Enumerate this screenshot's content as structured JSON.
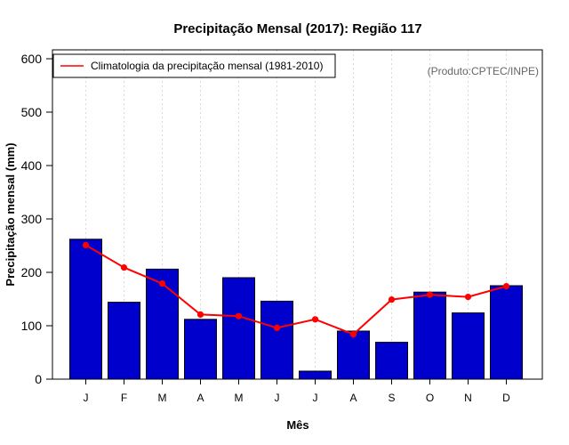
{
  "chart_data": {
    "type": "bar",
    "title": "Precipitação Mensal (2017): Região 117",
    "xlabel": "Mês",
    "ylabel": "Precipitação mensal (mm)",
    "ylim": [
      0,
      600
    ],
    "yticks": [
      "0",
      "100",
      "200",
      "300",
      "400",
      "500",
      "600"
    ],
    "categories": [
      "J",
      "F",
      "M",
      "A",
      "M",
      "J",
      "J",
      "A",
      "S",
      "O",
      "N",
      "D"
    ],
    "grid": "vertical dotted",
    "legend_position": "top-left",
    "series": [
      {
        "name": "Precipitação mensal (2017)",
        "kind": "bar",
        "color": "#0000cd",
        "values": [
          262,
          144,
          206,
          112,
          190,
          146,
          15,
          90,
          69,
          163,
          124,
          175
        ]
      },
      {
        "name": "Climatologia da precipitação mensal (1981-2010)",
        "kind": "line",
        "color": "#ff0000",
        "values": [
          251,
          209,
          179,
          121,
          118,
          96,
          112,
          84,
          149,
          158,
          154,
          174
        ]
      }
    ],
    "legend": {
      "label": "Climatologia da precipitação mensal (1981-2010)"
    },
    "annotation": "(Produto:CPTEC/INPE)"
  }
}
